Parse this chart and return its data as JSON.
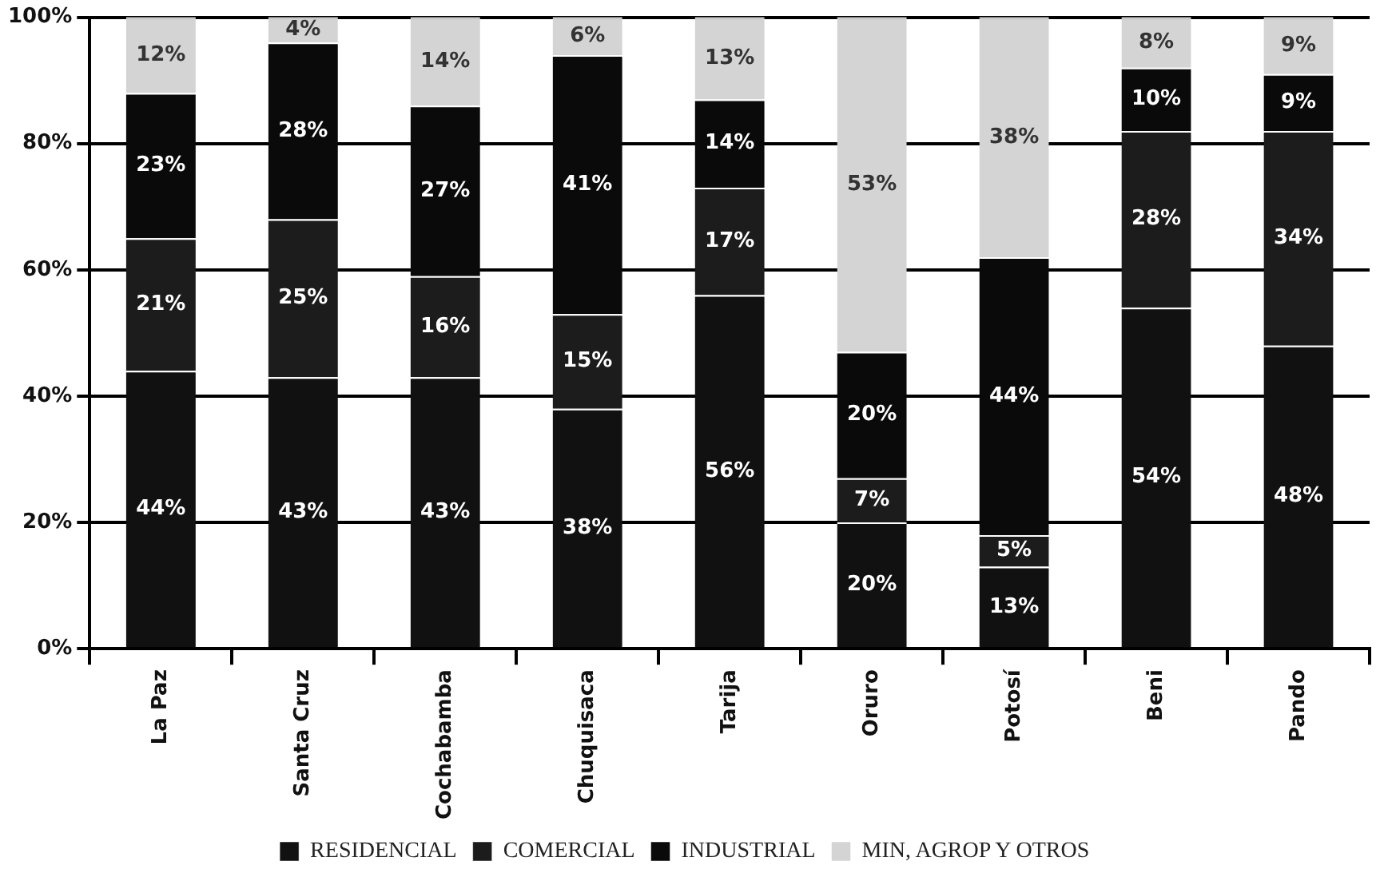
{
  "chart_data": {
    "type": "bar",
    "stacked": true,
    "categories": [
      "La Paz",
      "Santa Cruz",
      "Cochabamba",
      "Chuquisaca",
      "Tarija",
      "Oruro",
      "Potosí",
      "Beni",
      "Pando"
    ],
    "series": [
      {
        "name": "RESIDENCIAL",
        "color": "#111111",
        "values": [
          44,
          43,
          43,
          38,
          56,
          20,
          13,
          54,
          48
        ],
        "value_labels": [
          "44%",
          "43%",
          "43%",
          "38%",
          "56%",
          "20%",
          "13%",
          "54%",
          "48%"
        ]
      },
      {
        "name": "COMERCIAL",
        "color": "#1c1c1c",
        "values": [
          21,
          25,
          16,
          15,
          17,
          7,
          5,
          28,
          34
        ],
        "value_labels": [
          "21%",
          "25%",
          "16%",
          "15%",
          "17%",
          "7%",
          "5%",
          "28%",
          "34%"
        ]
      },
      {
        "name": "INDUSTRIAL",
        "color": "#0a0a0a",
        "values": [
          23,
          28,
          27,
          41,
          14,
          20,
          44,
          10,
          9
        ],
        "value_labels": [
          "23%",
          "28%",
          "27%",
          "41%",
          "14%",
          "20%",
          "44%",
          "10%",
          "9%"
        ]
      },
      {
        "name": "MIN, AGROP Y OTROS",
        "color": "#d4d4d4",
        "values": [
          12,
          4,
          14,
          6,
          13,
          53,
          38,
          8,
          9
        ],
        "value_labels": [
          "12%",
          "4%",
          "14%",
          "6%",
          "13%",
          "53%",
          "38%",
          "8%",
          "9%"
        ]
      }
    ],
    "ylim": [
      0,
      100
    ],
    "yticks": [
      {
        "value": 0,
        "label": "0%"
      },
      {
        "value": 20,
        "label": "20%"
      },
      {
        "value": 40,
        "label": "40%"
      },
      {
        "value": 60,
        "label": "60%"
      },
      {
        "value": 80,
        "label": "80%"
      },
      {
        "value": 100,
        "label": "100%"
      }
    ],
    "grid": "y",
    "legend": "bottom"
  }
}
